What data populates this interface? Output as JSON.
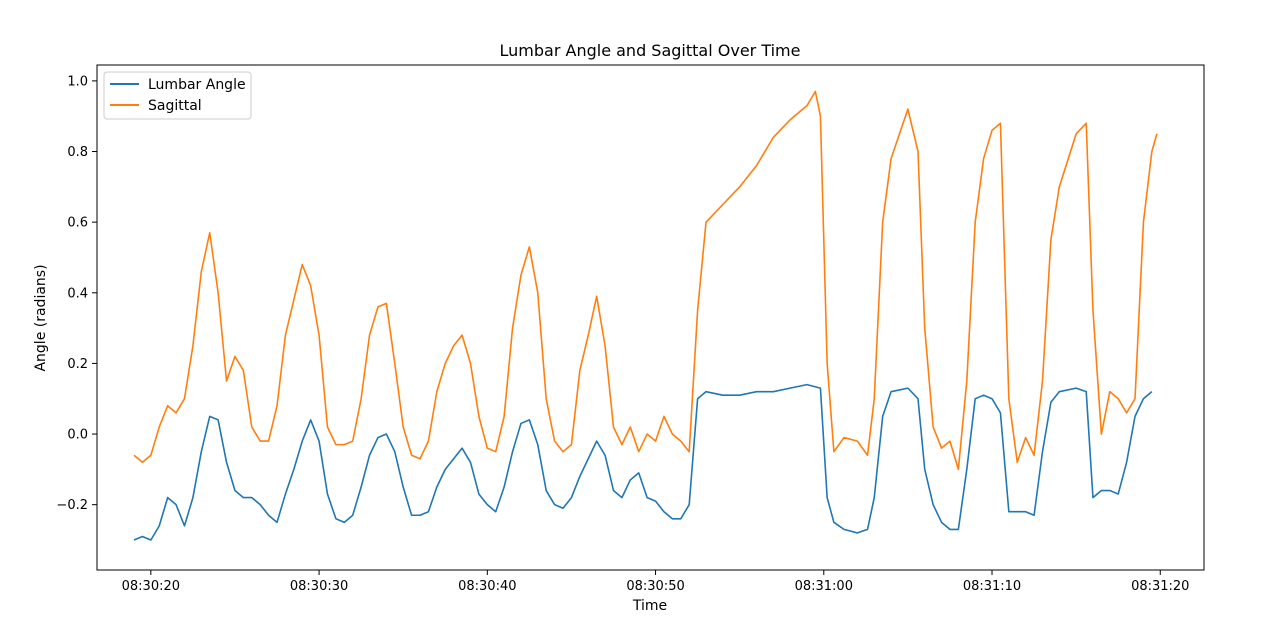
{
  "chart_data": {
    "type": "line",
    "title": "Lumbar Angle and Sagittal Over Time",
    "xlabel": "Time",
    "ylabel": "Angle (radians)",
    "x_axis": {
      "type": "time",
      "ticks": [
        "08:30:20",
        "08:30:30",
        "08:30:40",
        "08:30:50",
        "08:31:00",
        "08:31:10",
        "08:31:20"
      ],
      "range": [
        "08:30:16.8",
        "08:31:22.6"
      ]
    },
    "y_axis": {
      "ticks": [
        "−0.2",
        "0.0",
        "0.2",
        "0.4",
        "0.6",
        "0.8",
        "1.0"
      ],
      "tick_values": [
        -0.2,
        0.0,
        0.2,
        0.4,
        0.6,
        0.8,
        1.0
      ],
      "range": [
        -0.385,
        1.045
      ]
    },
    "grid": false,
    "legend": {
      "placement": "top-left",
      "entries": [
        "Lumbar Angle",
        "Sagittal"
      ]
    },
    "series": [
      {
        "name": "Lumbar Angle",
        "color": "#1f77b4",
        "points": [
          [
            "08:30:19.00",
            -0.3
          ],
          [
            "08:30:19.50",
            -0.29
          ],
          [
            "08:30:20.00",
            -0.3
          ],
          [
            "08:30:20.50",
            -0.26
          ],
          [
            "08:30:21.00",
            -0.18
          ],
          [
            "08:30:21.50",
            -0.2
          ],
          [
            "08:30:22.00",
            -0.26
          ],
          [
            "08:30:22.50",
            -0.18
          ],
          [
            "08:30:23.00",
            -0.05
          ],
          [
            "08:30:23.50",
            0.05
          ],
          [
            "08:30:24.00",
            0.04
          ],
          [
            "08:30:24.50",
            -0.08
          ],
          [
            "08:30:25.00",
            -0.16
          ],
          [
            "08:30:25.50",
            -0.18
          ],
          [
            "08:30:26.00",
            -0.18
          ],
          [
            "08:30:26.50",
            -0.2
          ],
          [
            "08:30:27.00",
            -0.23
          ],
          [
            "08:30:27.50",
            -0.25
          ],
          [
            "08:30:28.00",
            -0.17
          ],
          [
            "08:30:28.50",
            -0.1
          ],
          [
            "08:30:29.00",
            -0.02
          ],
          [
            "08:30:29.50",
            0.04
          ],
          [
            "08:30:30.00",
            -0.02
          ],
          [
            "08:30:30.50",
            -0.17
          ],
          [
            "08:30:31.00",
            -0.24
          ],
          [
            "08:30:31.50",
            -0.25
          ],
          [
            "08:30:32.00",
            -0.23
          ],
          [
            "08:30:32.50",
            -0.15
          ],
          [
            "08:30:33.00",
            -0.06
          ],
          [
            "08:30:33.50",
            -0.01
          ],
          [
            "08:30:34.00",
            0.0
          ],
          [
            "08:30:34.50",
            -0.05
          ],
          [
            "08:30:35.00",
            -0.15
          ],
          [
            "08:30:35.50",
            -0.23
          ],
          [
            "08:30:36.00",
            -0.23
          ],
          [
            "08:30:36.50",
            -0.22
          ],
          [
            "08:30:37.00",
            -0.15
          ],
          [
            "08:30:37.50",
            -0.1
          ],
          [
            "08:30:38.00",
            -0.07
          ],
          [
            "08:30:38.50",
            -0.04
          ],
          [
            "08:30:39.00",
            -0.08
          ],
          [
            "08:30:39.50",
            -0.17
          ],
          [
            "08:30:40.00",
            -0.2
          ],
          [
            "08:30:40.50",
            -0.22
          ],
          [
            "08:30:41.00",
            -0.15
          ],
          [
            "08:30:41.50",
            -0.05
          ],
          [
            "08:30:42.00",
            0.03
          ],
          [
            "08:30:42.50",
            0.04
          ],
          [
            "08:30:43.00",
            -0.03
          ],
          [
            "08:30:43.50",
            -0.16
          ],
          [
            "08:30:44.00",
            -0.2
          ],
          [
            "08:30:44.50",
            -0.21
          ],
          [
            "08:30:45.00",
            -0.18
          ],
          [
            "08:30:45.50",
            -0.12
          ],
          [
            "08:30:46.00",
            -0.07
          ],
          [
            "08:30:46.50",
            -0.02
          ],
          [
            "08:30:47.00",
            -0.06
          ],
          [
            "08:30:47.50",
            -0.16
          ],
          [
            "08:30:48.00",
            -0.18
          ],
          [
            "08:30:48.50",
            -0.13
          ],
          [
            "08:30:49.00",
            -0.11
          ],
          [
            "08:30:49.50",
            -0.18
          ],
          [
            "08:30:50.00",
            -0.19
          ],
          [
            "08:30:50.50",
            -0.22
          ],
          [
            "08:30:51.00",
            -0.24
          ],
          [
            "08:30:51.50",
            -0.24
          ],
          [
            "08:30:52.00",
            -0.2
          ],
          [
            "08:30:52.50",
            0.1
          ],
          [
            "08:30:53.00",
            0.12
          ],
          [
            "08:30:54.00",
            0.11
          ],
          [
            "08:30:55.00",
            0.11
          ],
          [
            "08:30:56.00",
            0.12
          ],
          [
            "08:30:57.00",
            0.12
          ],
          [
            "08:30:58.00",
            0.13
          ],
          [
            "08:30:59.00",
            0.14
          ],
          [
            "08:30:59.80",
            0.13
          ],
          [
            "08:31:00.20",
            -0.18
          ],
          [
            "08:31:00.60",
            -0.25
          ],
          [
            "08:31:01.20",
            -0.27
          ],
          [
            "08:31:02.00",
            -0.28
          ],
          [
            "08:31:02.60",
            -0.27
          ],
          [
            "08:31:03.00",
            -0.18
          ],
          [
            "08:31:03.50",
            0.05
          ],
          [
            "08:31:04.00",
            0.12
          ],
          [
            "08:31:05.00",
            0.13
          ],
          [
            "08:31:05.60",
            0.1
          ],
          [
            "08:31:06.00",
            -0.1
          ],
          [
            "08:31:06.50",
            -0.2
          ],
          [
            "08:31:07.00",
            -0.25
          ],
          [
            "08:31:07.50",
            -0.27
          ],
          [
            "08:31:08.00",
            -0.27
          ],
          [
            "08:31:08.50",
            -0.1
          ],
          [
            "08:31:09.00",
            0.1
          ],
          [
            "08:31:09.50",
            0.11
          ],
          [
            "08:31:10.00",
            0.1
          ],
          [
            "08:31:10.50",
            0.06
          ],
          [
            "08:31:11.00",
            -0.22
          ],
          [
            "08:31:11.50",
            -0.22
          ],
          [
            "08:31:12.00",
            -0.22
          ],
          [
            "08:31:12.50",
            -0.23
          ],
          [
            "08:31:13.00",
            -0.05
          ],
          [
            "08:31:13.50",
            0.09
          ],
          [
            "08:31:14.00",
            0.12
          ],
          [
            "08:31:15.00",
            0.13
          ],
          [
            "08:31:15.60",
            0.12
          ],
          [
            "08:31:16.00",
            -0.18
          ],
          [
            "08:31:16.50",
            -0.16
          ],
          [
            "08:31:17.00",
            -0.16
          ],
          [
            "08:31:17.50",
            -0.17
          ],
          [
            "08:31:18.00",
            -0.08
          ],
          [
            "08:31:18.50",
            0.05
          ],
          [
            "08:31:19.00",
            0.1
          ],
          [
            "08:31:19.50",
            0.12
          ]
        ]
      },
      {
        "name": "Sagittal",
        "color": "#ff7f0e",
        "points": [
          [
            "08:30:19.00",
            -0.06
          ],
          [
            "08:30:19.50",
            -0.08
          ],
          [
            "08:30:20.00",
            -0.06
          ],
          [
            "08:30:20.50",
            0.02
          ],
          [
            "08:30:21.00",
            0.08
          ],
          [
            "08:30:21.50",
            0.06
          ],
          [
            "08:30:22.00",
            0.1
          ],
          [
            "08:30:22.50",
            0.25
          ],
          [
            "08:30:23.00",
            0.46
          ],
          [
            "08:30:23.50",
            0.57
          ],
          [
            "08:30:24.00",
            0.4
          ],
          [
            "08:30:24.50",
            0.15
          ],
          [
            "08:30:25.00",
            0.22
          ],
          [
            "08:30:25.50",
            0.18
          ],
          [
            "08:30:26.00",
            0.02
          ],
          [
            "08:30:26.50",
            -0.02
          ],
          [
            "08:30:27.00",
            -0.02
          ],
          [
            "08:30:27.50",
            0.08
          ],
          [
            "08:30:28.00",
            0.28
          ],
          [
            "08:30:28.50",
            0.38
          ],
          [
            "08:30:29.00",
            0.48
          ],
          [
            "08:30:29.50",
            0.42
          ],
          [
            "08:30:30.00",
            0.28
          ],
          [
            "08:30:30.50",
            0.02
          ],
          [
            "08:30:31.00",
            -0.03
          ],
          [
            "08:30:31.50",
            -0.03
          ],
          [
            "08:30:32.00",
            -0.02
          ],
          [
            "08:30:32.50",
            0.1
          ],
          [
            "08:30:33.00",
            0.28
          ],
          [
            "08:30:33.50",
            0.36
          ],
          [
            "08:30:34.00",
            0.37
          ],
          [
            "08:30:34.50",
            0.2
          ],
          [
            "08:30:35.00",
            0.02
          ],
          [
            "08:30:35.50",
            -0.06
          ],
          [
            "08:30:36.00",
            -0.07
          ],
          [
            "08:30:36.50",
            -0.02
          ],
          [
            "08:30:37.00",
            0.12
          ],
          [
            "08:30:37.50",
            0.2
          ],
          [
            "08:30:38.00",
            0.25
          ],
          [
            "08:30:38.50",
            0.28
          ],
          [
            "08:30:39.00",
            0.2
          ],
          [
            "08:30:39.50",
            0.05
          ],
          [
            "08:30:40.00",
            -0.04
          ],
          [
            "08:30:40.50",
            -0.05
          ],
          [
            "08:30:41.00",
            0.05
          ],
          [
            "08:30:41.50",
            0.3
          ],
          [
            "08:30:42.00",
            0.45
          ],
          [
            "08:30:42.50",
            0.53
          ],
          [
            "08:30:43.00",
            0.4
          ],
          [
            "08:30:43.50",
            0.1
          ],
          [
            "08:30:44.00",
            -0.02
          ],
          [
            "08:30:44.50",
            -0.05
          ],
          [
            "08:30:45.00",
            -0.03
          ],
          [
            "08:30:45.50",
            0.18
          ],
          [
            "08:30:46.00",
            0.28
          ],
          [
            "08:30:46.50",
            0.39
          ],
          [
            "08:30:47.00",
            0.25
          ],
          [
            "08:30:47.50",
            0.02
          ],
          [
            "08:30:48.00",
            -0.03
          ],
          [
            "08:30:48.50",
            0.02
          ],
          [
            "08:30:49.00",
            -0.05
          ],
          [
            "08:30:49.50",
            0.0
          ],
          [
            "08:30:50.00",
            -0.02
          ],
          [
            "08:30:50.50",
            0.05
          ],
          [
            "08:30:51.00",
            0.0
          ],
          [
            "08:30:51.50",
            -0.02
          ],
          [
            "08:30:52.00",
            -0.05
          ],
          [
            "08:30:52.50",
            0.35
          ],
          [
            "08:30:53.00",
            0.6
          ],
          [
            "08:30:54.00",
            0.65
          ],
          [
            "08:30:55.00",
            0.7
          ],
          [
            "08:30:56.00",
            0.76
          ],
          [
            "08:30:57.00",
            0.84
          ],
          [
            "08:30:58.00",
            0.89
          ],
          [
            "08:30:59.00",
            0.93
          ],
          [
            "08:30:59.50",
            0.97
          ],
          [
            "08:30:59.80",
            0.9
          ],
          [
            "08:31:00.20",
            0.2
          ],
          [
            "08:31:00.60",
            -0.05
          ],
          [
            "08:31:01.20",
            -0.01
          ],
          [
            "08:31:02.00",
            -0.02
          ],
          [
            "08:31:02.60",
            -0.06
          ],
          [
            "08:31:03.00",
            0.1
          ],
          [
            "08:31:03.50",
            0.6
          ],
          [
            "08:31:04.00",
            0.78
          ],
          [
            "08:31:05.00",
            0.92
          ],
          [
            "08:31:05.60",
            0.8
          ],
          [
            "08:31:06.00",
            0.3
          ],
          [
            "08:31:06.50",
            0.02
          ],
          [
            "08:31:07.00",
            -0.04
          ],
          [
            "08:31:07.50",
            -0.02
          ],
          [
            "08:31:08.00",
            -0.1
          ],
          [
            "08:31:08.50",
            0.15
          ],
          [
            "08:31:09.00",
            0.6
          ],
          [
            "08:31:09.50",
            0.78
          ],
          [
            "08:31:10.00",
            0.86
          ],
          [
            "08:31:10.50",
            0.88
          ],
          [
            "08:31:11.00",
            0.1
          ],
          [
            "08:31:11.50",
            -0.08
          ],
          [
            "08:31:12.00",
            -0.01
          ],
          [
            "08:31:12.50",
            -0.06
          ],
          [
            "08:31:13.00",
            0.15
          ],
          [
            "08:31:13.50",
            0.55
          ],
          [
            "08:31:14.00",
            0.7
          ],
          [
            "08:31:15.00",
            0.85
          ],
          [
            "08:31:15.60",
            0.88
          ],
          [
            "08:31:16.00",
            0.35
          ],
          [
            "08:31:16.50",
            0.0
          ],
          [
            "08:31:17.00",
            0.12
          ],
          [
            "08:31:17.50",
            0.1
          ],
          [
            "08:31:18.00",
            0.06
          ],
          [
            "08:31:18.50",
            0.1
          ],
          [
            "08:31:19.00",
            0.6
          ],
          [
            "08:31:19.50",
            0.8
          ],
          [
            "08:31:19.80",
            0.85
          ]
        ]
      }
    ]
  }
}
